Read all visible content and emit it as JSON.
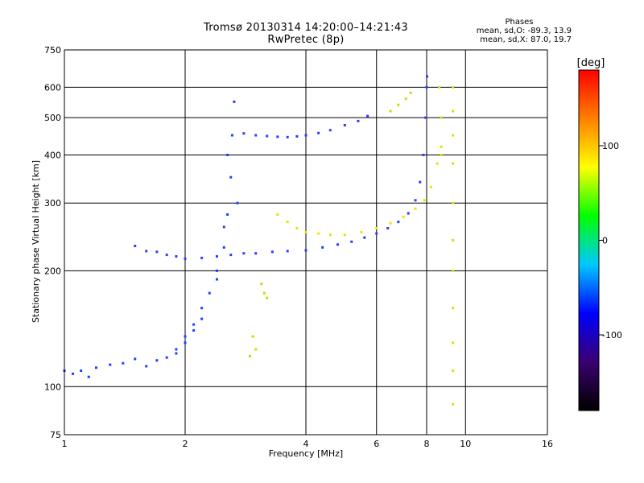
{
  "header": {
    "title_line1": "Tromsø 20130314 14:20:00–14:21:43",
    "title_line2": "RwPretec (8p)"
  },
  "stats": {
    "heading": "Phases",
    "line_o": "mean, sd,O: -89.3, 13.9",
    "line_x": "mean, sd,X:  87.0, 19.7"
  },
  "colorbar": {
    "label": "[deg]",
    "ticks": [
      {
        "value": 100,
        "label": "100"
      },
      {
        "value": 0,
        "label": "0"
      },
      {
        "value": -100,
        "label": "-100"
      }
    ],
    "range": [
      -180,
      180
    ],
    "colors": [
      "#000000",
      "#3a0070",
      "#0000ff",
      "#00c8ff",
      "#00ff00",
      "#ffff00",
      "#ff8000",
      "#ff0000"
    ]
  },
  "chart_data": {
    "type": "scatter",
    "xlabel": "Frequency [MHz]",
    "ylabel": "Stationary phase Virtual Height [km]",
    "xscale": "log",
    "yscale": "log",
    "xlim": [
      1,
      16
    ],
    "ylim": [
      75,
      750
    ],
    "xticks": [
      {
        "value": 1,
        "label": "1"
      },
      {
        "value": 2,
        "label": "2"
      },
      {
        "value": 4,
        "label": "4"
      },
      {
        "value": 6,
        "label": "6"
      },
      {
        "value": 8,
        "label": "8"
      },
      {
        "value": 10,
        "label": "10"
      },
      {
        "value": 16,
        "label": "16"
      }
    ],
    "yticks": [
      {
        "value": 75,
        "label": "75"
      },
      {
        "value": 100,
        "label": "100"
      },
      {
        "value": 200,
        "label": "200"
      },
      {
        "value": 300,
        "label": "300"
      },
      {
        "value": 400,
        "label": "400"
      },
      {
        "value": 500,
        "label": "500"
      },
      {
        "value": 600,
        "label": "600"
      },
      {
        "value": 750,
        "label": "750"
      }
    ],
    "grid": true,
    "series": [
      {
        "name": "",
        "color": "#1e40ff",
        "points": [
          [
            1.0,
            110
          ],
          [
            1.05,
            108
          ],
          [
            1.1,
            110
          ],
          [
            1.15,
            106
          ],
          [
            1.2,
            112
          ],
          [
            1.3,
            114
          ],
          [
            1.4,
            115
          ],
          [
            1.5,
            118
          ],
          [
            1.6,
            113
          ],
          [
            1.7,
            117
          ],
          [
            1.8,
            119
          ],
          [
            1.9,
            125
          ],
          [
            2.0,
            135
          ],
          [
            2.1,
            145
          ],
          [
            2.2,
            160
          ],
          [
            2.3,
            175
          ],
          [
            2.4,
            200
          ],
          [
            2.5,
            230
          ],
          [
            2.55,
            280
          ],
          [
            2.6,
            350
          ],
          [
            2.62,
            450
          ],
          [
            2.65,
            550
          ],
          [
            2.55,
            400
          ],
          [
            2.7,
            300
          ],
          [
            2.5,
            260
          ],
          [
            2.4,
            190
          ],
          [
            2.2,
            150
          ],
          [
            2.1,
            140
          ],
          [
            2.0,
            130
          ],
          [
            1.9,
            122
          ]
        ]
      },
      {
        "name": "",
        "color": "#2a3cff",
        "points": [
          [
            1.5,
            232
          ],
          [
            1.6,
            225
          ],
          [
            1.7,
            224
          ],
          [
            1.8,
            220
          ],
          [
            1.9,
            218
          ],
          [
            2.0,
            215
          ],
          [
            2.2,
            216
          ],
          [
            2.4,
            218
          ],
          [
            2.6,
            220
          ],
          [
            2.8,
            222
          ],
          [
            3.0,
            222
          ],
          [
            3.3,
            224
          ],
          [
            3.6,
            225
          ],
          [
            4.0,
            226
          ],
          [
            4.4,
            230
          ],
          [
            4.8,
            234
          ],
          [
            5.2,
            238
          ],
          [
            5.6,
            244
          ],
          [
            6.0,
            250
          ],
          [
            6.4,
            258
          ],
          [
            6.8,
            268
          ],
          [
            7.2,
            282
          ],
          [
            7.5,
            305
          ],
          [
            7.7,
            340
          ],
          [
            7.85,
            400
          ],
          [
            7.95,
            500
          ],
          [
            8.0,
            600
          ],
          [
            8.02,
            640
          ]
        ]
      },
      {
        "name": "",
        "color": "#2a3cff",
        "points": [
          [
            2.8,
            455
          ],
          [
            3.0,
            450
          ],
          [
            3.2,
            448
          ],
          [
            3.4,
            446
          ],
          [
            3.6,
            445
          ],
          [
            3.8,
            447
          ],
          [
            4.0,
            450
          ],
          [
            4.3,
            456
          ],
          [
            4.6,
            464
          ],
          [
            5.0,
            478
          ],
          [
            5.4,
            490
          ],
          [
            5.7,
            505
          ]
        ]
      },
      {
        "name": "",
        "color": "#e6e600",
        "points": [
          [
            3.4,
            280
          ],
          [
            3.6,
            268
          ],
          [
            3.8,
            258
          ],
          [
            4.0,
            252
          ],
          [
            4.3,
            250
          ],
          [
            4.6,
            248
          ],
          [
            5.0,
            248
          ],
          [
            5.5,
            252
          ],
          [
            6.0,
            258
          ],
          [
            6.5,
            266
          ],
          [
            7.0,
            276
          ],
          [
            7.5,
            290
          ],
          [
            7.9,
            305
          ],
          [
            8.2,
            330
          ],
          [
            8.5,
            380
          ],
          [
            8.7,
            420
          ]
        ]
      },
      {
        "name": "",
        "color": "#d2e600",
        "points": [
          [
            9.3,
            600
          ],
          [
            9.3,
            520
          ],
          [
            9.3,
            450
          ],
          [
            9.3,
            380
          ],
          [
            9.3,
            300
          ],
          [
            9.3,
            240
          ],
          [
            9.3,
            200
          ],
          [
            9.3,
            160
          ],
          [
            9.3,
            130
          ],
          [
            9.3,
            110
          ],
          [
            9.3,
            90
          ],
          [
            8.6,
            600
          ],
          [
            8.7,
            500
          ],
          [
            8.7,
            400
          ]
        ]
      },
      {
        "name": "",
        "color": "#b8e600",
        "points": [
          [
            3.1,
            185
          ],
          [
            3.15,
            175
          ],
          [
            3.2,
            170
          ],
          [
            2.95,
            135
          ],
          [
            3.0,
            125
          ],
          [
            2.9,
            120
          ],
          [
            6.8,
            540
          ],
          [
            7.1,
            560
          ],
          [
            7.3,
            580
          ],
          [
            6.5,
            520
          ]
        ]
      }
    ]
  }
}
